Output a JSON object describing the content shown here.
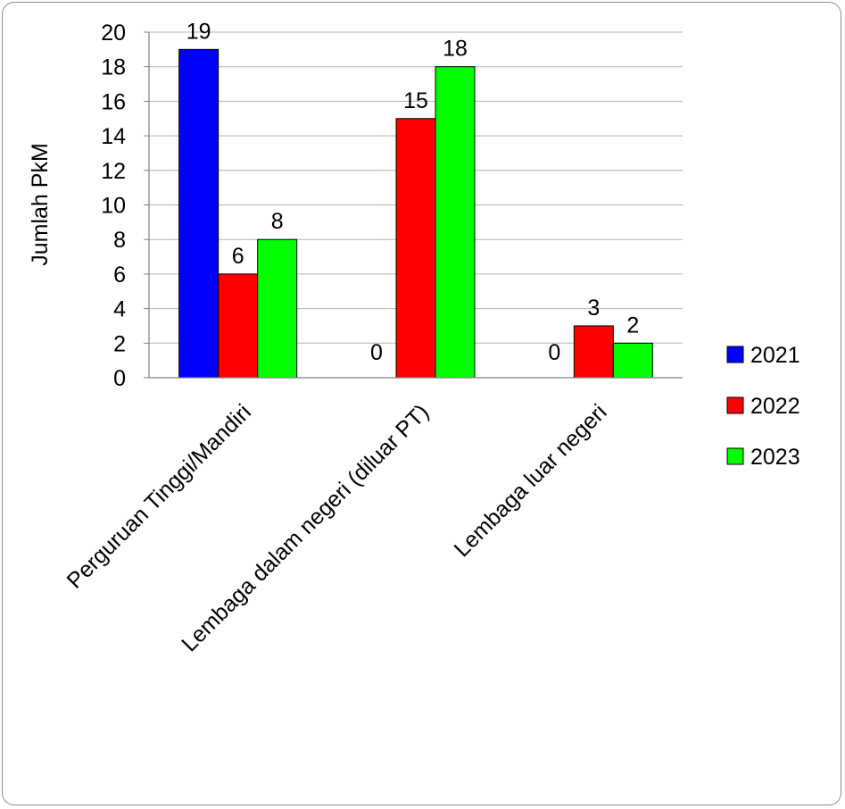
{
  "chart_data": {
    "type": "bar",
    "categories": [
      "Perguruan Tinggi/Mandiri",
      "Lembaga dalam negeri (diluar PT)",
      "Lembaga luar negeri"
    ],
    "series": [
      {
        "name": "2021",
        "values": [
          19,
          0,
          0
        ],
        "color": "#0000ff"
      },
      {
        "name": "2022",
        "values": [
          6,
          15,
          3
        ],
        "color": "#ff0000"
      },
      {
        "name": "2023",
        "values": [
          8,
          18,
          2
        ],
        "color": "#00ff00"
      }
    ],
    "ylabel": "Jumlah PkM",
    "ylim": [
      0,
      20
    ],
    "yticks": [
      0,
      2,
      4,
      6,
      8,
      10,
      12,
      14,
      16,
      18,
      20
    ],
    "grid": true,
    "legend": "right"
  }
}
